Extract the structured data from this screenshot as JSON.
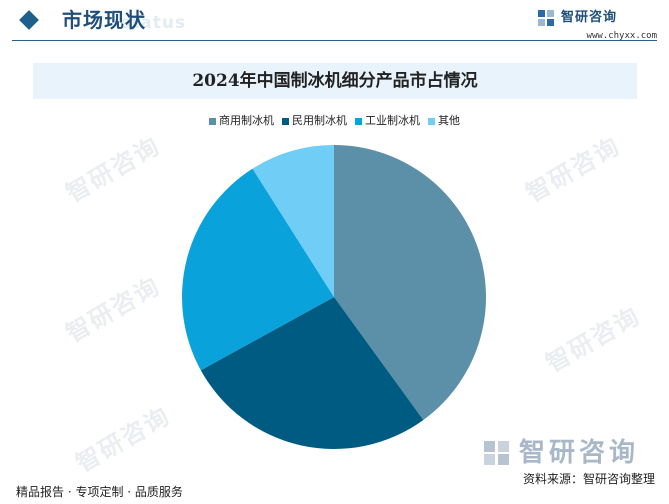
{
  "header": {
    "section_title": "市场现状",
    "section_ghost": "status",
    "brand_name": "智研咨询",
    "brand_url": "www.chyxx.com"
  },
  "chart_data": {
    "type": "pie",
    "title": "2024年中国制冰机细分产品市占情况",
    "legend_position": "top",
    "categories": [
      "商用制冰机",
      "民用制冰机",
      "工业制冰机",
      "其他"
    ],
    "values": [
      40,
      27,
      24,
      9
    ],
    "colors": [
      "#5b90a8",
      "#005b82",
      "#0aa2db",
      "#70cdf6"
    ]
  },
  "watermark": {
    "text": "智研咨询"
  },
  "footer": {
    "left": "精品报告 · 专项定制 · 品质服务",
    "source": "资料来源：智研咨询整理"
  }
}
